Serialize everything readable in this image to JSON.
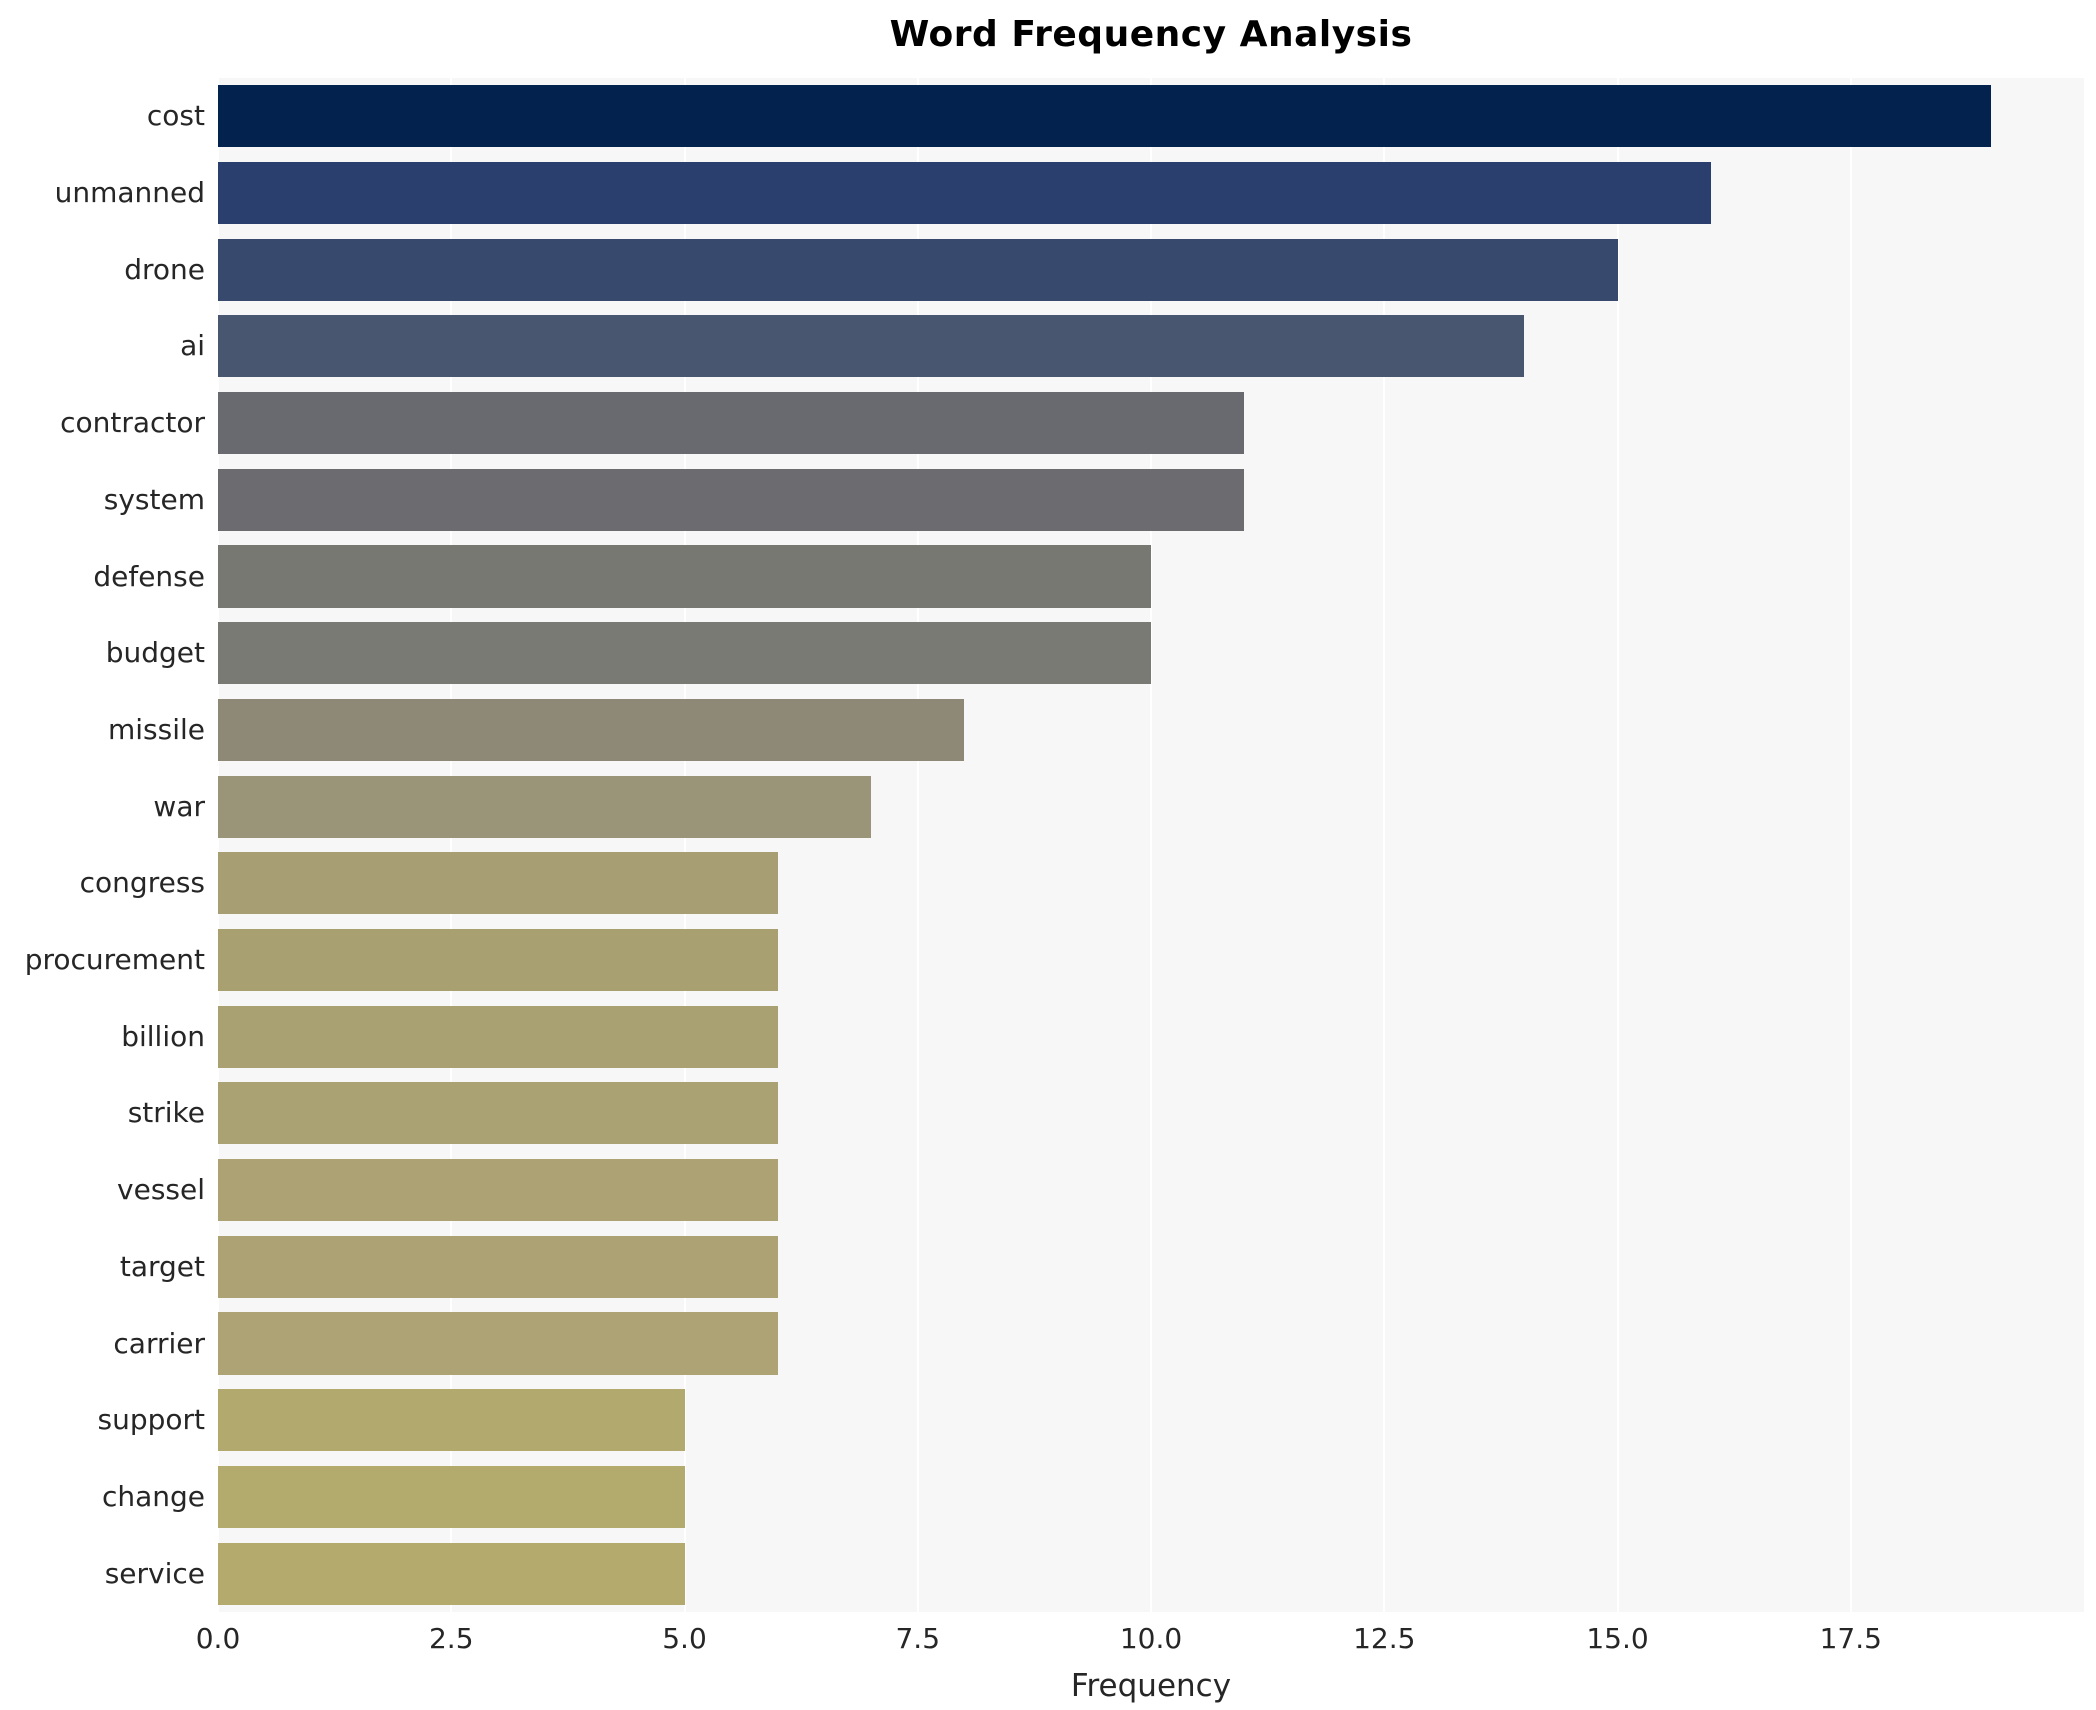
{
  "chart_data": {
    "type": "bar",
    "orientation": "horizontal",
    "title": "Word Frequency Analysis",
    "xlabel": "Frequency",
    "ylabel": "",
    "xlim": [
      0,
      20
    ],
    "x_ticks": [
      0.0,
      2.5,
      5.0,
      7.5,
      10.0,
      12.5,
      15.0,
      17.5
    ],
    "x_tick_labels": [
      "0.0",
      "2.5",
      "5.0",
      "7.5",
      "10.0",
      "12.5",
      "15.0",
      "17.5"
    ],
    "grid": true,
    "legend": "none",
    "plot_background": "#f7f7f8",
    "gridline_color": "#ffffff",
    "categories": [
      "cost",
      "unmanned",
      "drone",
      "ai",
      "contractor",
      "system",
      "defense",
      "budget",
      "missile",
      "war",
      "congress",
      "procurement",
      "billion",
      "strike",
      "vessel",
      "target",
      "carrier",
      "support",
      "change",
      "service"
    ],
    "values": [
      19,
      16,
      15,
      14,
      11,
      11,
      10,
      10,
      8,
      7,
      6,
      6,
      6,
      6,
      6,
      6,
      6,
      5,
      5,
      5
    ],
    "bar_colors": [
      "#03234e",
      "#2a3f6e",
      "#38496e",
      "#495670",
      "#696970",
      "#6b6b70",
      "#787873",
      "#7a7a74",
      "#8e8977",
      "#9a9578",
      "#a79f73",
      "#a9a072",
      "#aaa173",
      "#aba273",
      "#aca273",
      "#aca274",
      "#ada374",
      "#b2a96f",
      "#b3aa6e",
      "#b4aa6e"
    ]
  }
}
